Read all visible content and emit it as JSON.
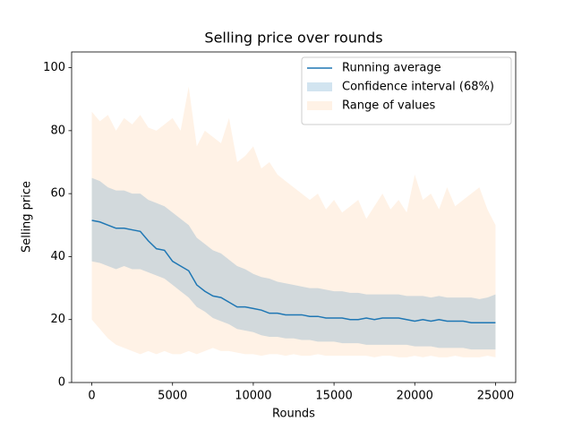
{
  "chart_data": {
    "type": "line",
    "title": "Selling price over rounds",
    "x_label": "Rounds",
    "y_label": "Selling price",
    "x": [
      0,
      500,
      1000,
      1500,
      2000,
      2500,
      3000,
      3500,
      4000,
      4500,
      5000,
      5500,
      6000,
      6500,
      7000,
      7500,
      8000,
      8500,
      9000,
      9500,
      10000,
      10500,
      11000,
      11500,
      12000,
      12500,
      13000,
      13500,
      14000,
      14500,
      15000,
      15500,
      16000,
      16500,
      17000,
      17500,
      18000,
      18500,
      19000,
      19500,
      20000,
      20500,
      21000,
      21500,
      22000,
      22500,
      23000,
      23500,
      24000,
      24500,
      25000
    ],
    "series": [
      {
        "name": "Running average",
        "color": "#1f77b4",
        "values": [
          51.5,
          51,
          50,
          49,
          49,
          48.5,
          48,
          45,
          42.5,
          42,
          38.5,
          37,
          35.5,
          31,
          29,
          27.5,
          27,
          25.5,
          24,
          24,
          23.5,
          23,
          22,
          22,
          21.5,
          21.5,
          21.5,
          21,
          21,
          20.5,
          20.5,
          20.5,
          20,
          20,
          20.5,
          20,
          20.5,
          20.5,
          20.5,
          20,
          19.5,
          20,
          19.5,
          20,
          19.5,
          19.5,
          19.5,
          19,
          19,
          19,
          19
        ]
      }
    ],
    "bands": [
      {
        "name": "Confidence interval (68%)",
        "color": "#1f77b4",
        "alpha": 0.2,
        "upper": [
          65,
          64,
          62,
          61,
          61,
          60,
          60,
          58,
          57,
          56,
          54,
          52,
          50,
          46,
          44,
          42,
          41,
          39,
          37,
          36,
          34.5,
          33.5,
          33,
          32,
          31.5,
          31,
          30.5,
          30,
          30,
          29.5,
          29,
          29,
          28.5,
          28.5,
          28,
          28,
          28,
          28,
          28,
          27.5,
          27.5,
          27.5,
          27,
          27.5,
          27,
          27,
          27,
          27,
          26.5,
          27,
          28
        ],
        "lower": [
          38.5,
          38,
          37,
          36,
          37,
          36,
          36,
          35,
          34,
          33,
          31,
          29,
          27,
          24,
          22.5,
          20.5,
          19.5,
          18.5,
          17,
          16.5,
          16,
          15,
          14.5,
          14.5,
          14,
          14,
          13.5,
          13.5,
          13,
          13,
          13,
          12.5,
          12.5,
          12.5,
          12,
          12,
          12,
          12,
          12,
          12,
          11.5,
          11.5,
          11.5,
          11,
          11,
          11,
          11,
          10.5,
          10.5,
          10.5,
          10.5
        ]
      },
      {
        "name": "Range of values",
        "color": "#ff7f0e",
        "alpha": 0.1,
        "upper": [
          86,
          83,
          85,
          80,
          84,
          82,
          85,
          81,
          80,
          82,
          84,
          80,
          94,
          75,
          80,
          78,
          76,
          84,
          70,
          72,
          75,
          68,
          70,
          66,
          64,
          62,
          60,
          58,
          60,
          55,
          58,
          54,
          56,
          58,
          52,
          56,
          60,
          55,
          58,
          54,
          66,
          58,
          60,
          55,
          62,
          56,
          58,
          60,
          62,
          55,
          50
        ],
        "lower": [
          20,
          17,
          14,
          12,
          11,
          10,
          9,
          10,
          9,
          10,
          9,
          9,
          10,
          9,
          10,
          11,
          10,
          10,
          9.5,
          9,
          9,
          8.5,
          9,
          9,
          8.5,
          9,
          8.5,
          8.5,
          9,
          8.5,
          8.5,
          8.5,
          8.5,
          8.5,
          8.5,
          8,
          8.5,
          8.5,
          8,
          8,
          8.5,
          8,
          8.5,
          8,
          8,
          8.5,
          8,
          8,
          8,
          8.5,
          8
        ]
      }
    ],
    "xlim": [
      -1250,
      26250
    ],
    "ylim": [
      0,
      105
    ],
    "xticks": [
      0,
      5000,
      10000,
      15000,
      20000,
      25000
    ],
    "yticks": [
      0,
      20,
      40,
      60,
      80,
      100
    ],
    "legend": "upper right"
  }
}
